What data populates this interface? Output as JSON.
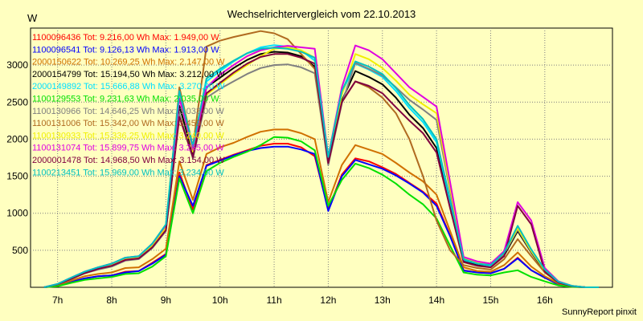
{
  "header": {
    "title": "Wechselrichtervergleich vom 22.10.2013",
    "unit": "W"
  },
  "footer": {
    "credit": "SunnyReport pinxit"
  },
  "colors": {
    "background": "#ffffc0",
    "grid": "#7f7f7f"
  },
  "chart_data": {
    "type": "line",
    "title": "Wechselrichtervergleich vom 22.10.2013",
    "ylabel": "W",
    "xlabel": "",
    "xlim": [
      6.5,
      17.25
    ],
    "ylim": [
      0,
      3500
    ],
    "yticks": [
      500,
      1000,
      1500,
      2000,
      2500,
      3000
    ],
    "ytick_labels": [
      "500",
      "1000",
      "1500",
      "2000",
      "2500",
      "3000"
    ],
    "xticks": [
      7,
      8,
      9,
      10,
      11,
      12,
      13,
      14,
      15,
      16
    ],
    "xtick_labels": [
      "7h",
      "8h",
      "9h",
      "10h",
      "11h",
      "12h",
      "13h",
      "14h",
      "15h",
      "16h"
    ],
    "grid": true,
    "legend_position": "top-left",
    "x": [
      6.75,
      7.0,
      7.25,
      7.5,
      7.75,
      8.0,
      8.25,
      8.5,
      8.75,
      9.0,
      9.25,
      9.5,
      9.75,
      10.0,
      10.25,
      10.5,
      10.75,
      11.0,
      11.25,
      11.5,
      11.75,
      12.0,
      12.25,
      12.5,
      12.75,
      13.0,
      13.25,
      13.5,
      13.75,
      14.0,
      14.25,
      14.5,
      14.75,
      15.0,
      15.25,
      15.5,
      15.75,
      16.0,
      16.25,
      16.5,
      16.75,
      17.0
    ],
    "series": [
      {
        "name": "1100096436 Tot: 9.216,00 Wh Max: 1.949,00 W",
        "color": "#ff0000",
        "values": [
          0,
          20,
          70,
          120,
          150,
          160,
          210,
          220,
          330,
          450,
          1550,
          1050,
          1650,
          1720,
          1790,
          1850,
          1910,
          1940,
          1940,
          1890,
          1770,
          1050,
          1520,
          1740,
          1700,
          1620,
          1530,
          1410,
          1290,
          1130,
          700,
          230,
          200,
          190,
          250,
          400,
          230,
          130,
          40,
          10,
          0,
          0
        ]
      },
      {
        "name": "1100096541 Tot: 9.126,13 Wh Max: 1.913,00 W",
        "color": "#0000ff",
        "values": [
          0,
          20,
          70,
          120,
          150,
          160,
          200,
          220,
          320,
          440,
          1500,
          1100,
          1640,
          1710,
          1780,
          1840,
          1880,
          1900,
          1900,
          1860,
          1800,
          1030,
          1500,
          1720,
          1660,
          1600,
          1510,
          1400,
          1280,
          1100,
          690,
          225,
          200,
          190,
          250,
          390,
          230,
          130,
          40,
          10,
          0,
          0
        ]
      },
      {
        "name": "2000150622 Tot: 10.269,25 Wh Max: 2.147,00 W",
        "color": "#d07000",
        "values": [
          0,
          30,
          90,
          150,
          180,
          200,
          260,
          270,
          380,
          520,
          1700,
          1180,
          1800,
          1890,
          1950,
          2030,
          2100,
          2130,
          2130,
          2080,
          2000,
          1150,
          1650,
          1920,
          1860,
          1800,
          1680,
          1550,
          1430,
          1250,
          760,
          270,
          220,
          210,
          300,
          470,
          280,
          150,
          50,
          15,
          0,
          0
        ]
      },
      {
        "name": "2000154799 Tot: 15.194,50 Wh Max: 3.212,00 W",
        "color": "#000000",
        "values": [
          0,
          40,
          120,
          200,
          260,
          300,
          380,
          400,
          560,
          780,
          2450,
          1800,
          2700,
          2830,
          2960,
          3070,
          3150,
          3180,
          3170,
          3120,
          2980,
          1700,
          2520,
          2920,
          2840,
          2740,
          2560,
          2330,
          2150,
          1880,
          1100,
          350,
          300,
          280,
          430,
          760,
          470,
          220,
          70,
          20,
          0,
          0
        ]
      },
      {
        "name": "2000149892 Tot: 15.666,88 Wh Max: 3.270,00 W",
        "color": "#00e0ff",
        "values": [
          0,
          45,
          130,
          210,
          270,
          320,
          400,
          420,
          590,
          830,
          2600,
          1850,
          2780,
          2920,
          3050,
          3160,
          3240,
          3270,
          3250,
          3200,
          3060,
          1750,
          2620,
          3020,
          2940,
          2840,
          2650,
          2420,
          2230,
          1960,
          1150,
          370,
          320,
          290,
          460,
          820,
          500,
          230,
          70,
          20,
          0,
          0
        ]
      },
      {
        "name": "1100129553 Tot: 9.231,63 Wh Max: 2.035,00 W",
        "color": "#00e000",
        "values": [
          0,
          15,
          60,
          100,
          120,
          140,
          180,
          190,
          280,
          420,
          1470,
          1000,
          1570,
          1680,
          1760,
          1830,
          1920,
          2030,
          2020,
          1970,
          1850,
          1100,
          1450,
          1670,
          1610,
          1520,
          1400,
          1250,
          1120,
          930,
          560,
          200,
          170,
          160,
          200,
          230,
          140,
          80,
          25,
          5,
          0,
          0
        ]
      },
      {
        "name": "1100130966 Tot: 14.646,25 Wh Max: 3.033,00 W",
        "color": "#808080",
        "values": [
          0,
          40,
          110,
          190,
          240,
          280,
          360,
          380,
          530,
          760,
          2340,
          1740,
          2560,
          2680,
          2780,
          2880,
          2960,
          3000,
          3010,
          2970,
          2890,
          1650,
          2480,
          3030,
          2950,
          2860,
          2700,
          2530,
          2400,
          2260,
          1300,
          380,
          320,
          300,
          450,
          780,
          480,
          230,
          70,
          20,
          0,
          0
        ]
      },
      {
        "name": "1100131006 Tot: 15.342,00 Wh Max: 3.459,00 W",
        "color": "#b06a20",
        "values": [
          0,
          40,
          120,
          200,
          260,
          300,
          380,
          400,
          560,
          800,
          2700,
          1900,
          3250,
          3330,
          3380,
          3420,
          3460,
          3430,
          3350,
          3150,
          2950,
          1680,
          2500,
          2780,
          2700,
          2560,
          2350,
          2000,
          1500,
          900,
          500,
          300,
          260,
          240,
          380,
          650,
          420,
          200,
          60,
          15,
          0,
          0
        ]
      },
      {
        "name": "1100130933 Tot: 15.336,25 Wh Max: 3.240,00 W",
        "color": "#f0f000",
        "values": [
          0,
          40,
          120,
          200,
          260,
          300,
          380,
          400,
          560,
          800,
          2580,
          1830,
          2600,
          2740,
          2880,
          3000,
          3120,
          3220,
          3240,
          3200,
          3100,
          1720,
          2600,
          3150,
          3080,
          2960,
          2790,
          2600,
          2470,
          2350,
          1350,
          390,
          330,
          310,
          470,
          800,
          490,
          230,
          70,
          20,
          0,
          0
        ]
      },
      {
        "name": "1100131074 Tot: 15.899,75 Wh Max: 3.265,00 W",
        "color": "#e000e0",
        "values": [
          0,
          45,
          130,
          210,
          270,
          320,
          400,
          420,
          590,
          840,
          2550,
          1880,
          2700,
          2870,
          3000,
          3120,
          3200,
          3240,
          3260,
          3240,
          3220,
          1760,
          2700,
          3265,
          3200,
          3080,
          2890,
          2700,
          2570,
          2440,
          1420,
          410,
          350,
          320,
          490,
          1150,
          900,
          260,
          80,
          20,
          0,
          0
        ]
      },
      {
        "name": "2000001478 Tot: 14.968,50 Wh Max: 3.154,00 W",
        "color": "#800040",
        "values": [
          0,
          40,
          115,
          190,
          250,
          290,
          370,
          390,
          540,
          770,
          2300,
          1760,
          2620,
          2760,
          2900,
          3020,
          3110,
          3150,
          3150,
          3100,
          3020,
          1680,
          2500,
          2780,
          2720,
          2620,
          2430,
          2250,
          2080,
          1820,
          1070,
          340,
          290,
          270,
          420,
          1100,
          850,
          210,
          65,
          15,
          0,
          0
        ]
      },
      {
        "name": "1100213451 Tot: 15.969,00 Wh Max: 3.234,00 W",
        "color": "#00c0c0",
        "values": [
          0,
          45,
          130,
          210,
          270,
          320,
          400,
          420,
          590,
          850,
          2650,
          1900,
          2820,
          2950,
          3060,
          3160,
          3220,
          3234,
          3220,
          3180,
          3100,
          1760,
          2650,
          3050,
          2980,
          2880,
          2690,
          2460,
          2270,
          2000,
          1180,
          380,
          320,
          300,
          470,
          830,
          510,
          240,
          75,
          20,
          0,
          0
        ]
      }
    ]
  }
}
